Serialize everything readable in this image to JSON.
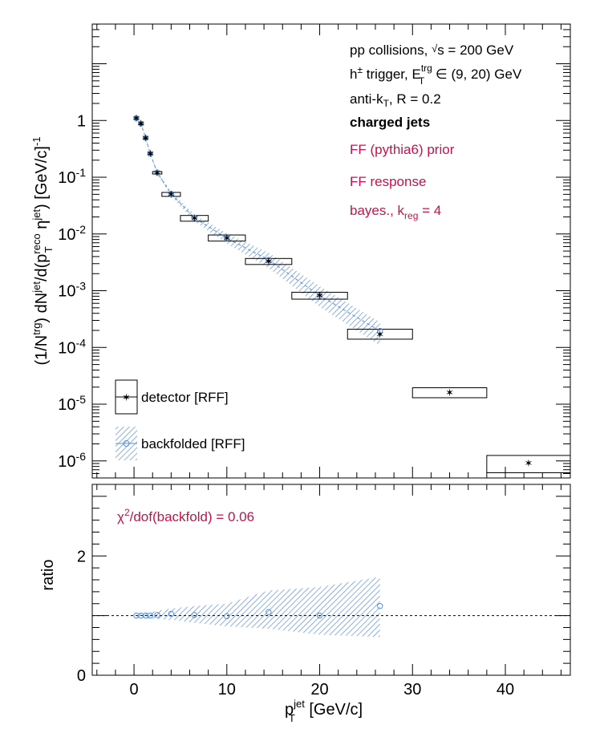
{
  "chart_data": [
    {
      "type": "scatter",
      "xlabel": "p_T^jet [GeV/c]",
      "ylabel": "(1/N^trg) dN^jet/d(p_T^reco η^jet) [GeV/c]^-1",
      "xlim": [
        -4.5,
        47
      ],
      "ylim_log10": [
        -6.3,
        1.7
      ],
      "yscale": "log",
      "grid": false,
      "annotations": [
        {
          "text": "pp collisions, √s = 200 GeV",
          "color": "#000000",
          "bold": false
        },
        {
          "text": "h± trigger, E_T^trg ∈ (9, 20) GeV",
          "color": "#000000",
          "bold": false
        },
        {
          "text": "anti-k_T, R = 0.2",
          "color": "#000000",
          "bold": false
        },
        {
          "text": "charged jets",
          "color": "#000000",
          "bold": true
        },
        {
          "text": "FF (pythia6) prior",
          "color": "#c8104a",
          "bold": false
        },
        {
          "text": "FF response",
          "color": "#c8104a",
          "bold": false
        },
        {
          "text": "bayes., k_reg = 4",
          "color": "#c8104a",
          "bold": false
        }
      ],
      "legend_position": "bottom-left",
      "series": [
        {
          "name": "detector [RFF]",
          "marker": "star",
          "color": "#000000",
          "points": [
            {
              "x": 0.25,
              "y": 1.1,
              "xlo": 0.0,
              "xhi": 0.5,
              "ylo": 1.05,
              "yhi": 1.15
            },
            {
              "x": 0.75,
              "y": 0.88,
              "xlo": 0.5,
              "xhi": 1.0,
              "ylo": 0.84,
              "yhi": 0.92
            },
            {
              "x": 1.25,
              "y": 0.49,
              "xlo": 1.0,
              "xhi": 1.5,
              "ylo": 0.47,
              "yhi": 0.51
            },
            {
              "x": 1.75,
              "y": 0.26,
              "xlo": 1.5,
              "xhi": 2.0,
              "ylo": 0.25,
              "yhi": 0.27
            },
            {
              "x": 2.5,
              "y": 0.12,
              "xlo": 2.0,
              "xhi": 3.0,
              "ylo": 0.114,
              "yhi": 0.126
            },
            {
              "x": 4.0,
              "y": 0.05,
              "xlo": 3.0,
              "xhi": 5.0,
              "ylo": 0.046,
              "yhi": 0.054
            },
            {
              "x": 6.5,
              "y": 0.019,
              "xlo": 5.0,
              "xhi": 8.0,
              "ylo": 0.0168,
              "yhi": 0.0212
            },
            {
              "x": 10.0,
              "y": 0.0085,
              "xlo": 8.0,
              "xhi": 12.0,
              "ylo": 0.0075,
              "yhi": 0.0096
            },
            {
              "x": 14.5,
              "y": 0.0033,
              "xlo": 12.0,
              "xhi": 17.0,
              "ylo": 0.0029,
              "yhi": 0.0037
            },
            {
              "x": 20.0,
              "y": 0.00082,
              "xlo": 17.0,
              "xhi": 23.0,
              "ylo": 0.00071,
              "yhi": 0.00094
            },
            {
              "x": 26.5,
              "y": 0.00017,
              "xlo": 23.0,
              "xhi": 30.0,
              "ylo": 0.00014,
              "yhi": 0.00021
            },
            {
              "x": 34.0,
              "y": 1.6e-05,
              "xlo": 30.0,
              "xhi": 38.0,
              "ylo": 1.3e-05,
              "yhi": 1.95e-05
            },
            {
              "x": 42.5,
              "y": 9.2e-07,
              "xlo": 38.0,
              "xhi": 47.0,
              "ylo": 6.2e-07,
              "yhi": 1.25e-06
            }
          ]
        },
        {
          "name": "backfolded [RFF]",
          "marker": "open-circle",
          "color": "#5b8fd9",
          "points": [
            {
              "x": 0.25,
              "y": 1.1,
              "band": [
                1.06,
                1.14
              ]
            },
            {
              "x": 0.75,
              "y": 0.88,
              "band": [
                0.84,
                0.92
              ]
            },
            {
              "x": 1.25,
              "y": 0.49,
              "band": [
                0.465,
                0.515
              ]
            },
            {
              "x": 1.75,
              "y": 0.26,
              "band": [
                0.245,
                0.275
              ]
            },
            {
              "x": 2.5,
              "y": 0.121,
              "band": [
                0.112,
                0.13
              ]
            },
            {
              "x": 4.0,
              "y": 0.051,
              "band": [
                0.046,
                0.056
              ]
            },
            {
              "x": 6.5,
              "y": 0.0193,
              "band": [
                0.0166,
                0.0222
              ]
            },
            {
              "x": 10.0,
              "y": 0.0084,
              "band": [
                0.0068,
                0.0103
              ]
            },
            {
              "x": 14.5,
              "y": 0.0035,
              "band": [
                0.0025,
                0.0047
              ]
            },
            {
              "x": 20.0,
              "y": 0.00082,
              "band": [
                0.00052,
                0.0012
              ]
            },
            {
              "x": 26.5,
              "y": 0.000195,
              "band": [
                0.000108,
                0.00028
              ]
            }
          ]
        }
      ]
    },
    {
      "type": "scatter",
      "xlabel": "p_T^jet [GeV/c]",
      "ylabel": "ratio",
      "xlim": [
        -4.5,
        47
      ],
      "ylim": [
        0,
        3.2
      ],
      "yticks": [
        0,
        2
      ],
      "xticks": [
        0,
        10,
        20,
        30,
        40
      ],
      "reference_line": 1.0,
      "annotation": {
        "text": "χ²/dof(backfold) = 0.06",
        "color": "#c8104a"
      },
      "series": [
        {
          "name": "backfolded [RFF]",
          "marker": "open-circle",
          "color": "#5b8fd9",
          "points": [
            {
              "x": 0.25,
              "y": 1.0,
              "band": [
                0.97,
                1.03
              ]
            },
            {
              "x": 0.75,
              "y": 1.0,
              "band": [
                0.97,
                1.03
              ]
            },
            {
              "x": 1.25,
              "y": 1.0,
              "band": [
                0.96,
                1.04
              ]
            },
            {
              "x": 1.75,
              "y": 1.0,
              "band": [
                0.95,
                1.05
              ]
            },
            {
              "x": 2.5,
              "y": 1.01,
              "band": [
                0.94,
                1.08
              ]
            },
            {
              "x": 4.0,
              "y": 1.03,
              "band": [
                0.93,
                1.12
              ]
            },
            {
              "x": 6.5,
              "y": 1.01,
              "band": [
                0.88,
                1.16
              ]
            },
            {
              "x": 10.0,
              "y": 0.99,
              "band": [
                0.82,
                1.2
              ]
            },
            {
              "x": 14.5,
              "y": 1.06,
              "band": [
                0.78,
                1.42
              ]
            },
            {
              "x": 20.0,
              "y": 1.0,
              "band": [
                0.68,
                1.48
              ]
            },
            {
              "x": 26.5,
              "y": 1.16,
              "band": [
                0.64,
                1.65
              ]
            }
          ]
        }
      ]
    }
  ]
}
